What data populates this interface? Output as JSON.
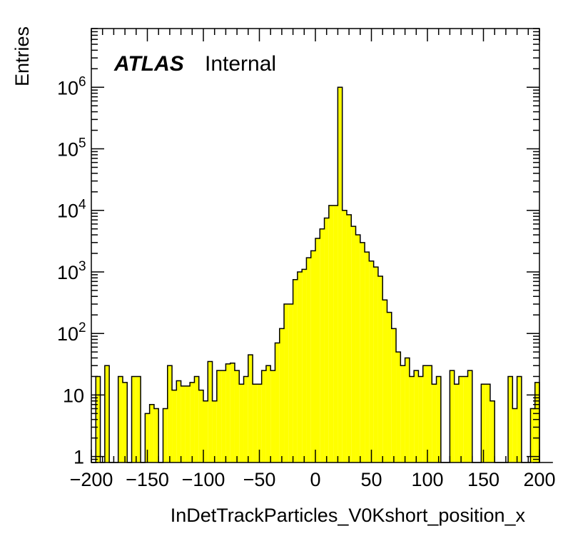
{
  "chart_data": {
    "type": "bar",
    "style": "histogram",
    "fill_color": "#ffff00",
    "line_color": "#000000",
    "xlabel": "InDetTrackParticles_V0Kshort_position_x",
    "ylabel": "Entries",
    "label_main": "ATLAS",
    "label_sub": "Internal",
    "xlim": [
      -200,
      200
    ],
    "ylim": [
      0.8,
      9000000
    ],
    "yscale": "log",
    "bin_width": 4,
    "x_ticks": [
      {
        "value": -200,
        "label": "−200"
      },
      {
        "value": -150,
        "label": "−150"
      },
      {
        "value": -100,
        "label": "−100"
      },
      {
        "value": -50,
        "label": "−50"
      },
      {
        "value": 0,
        "label": "0"
      },
      {
        "value": 50,
        "label": "50"
      },
      {
        "value": 100,
        "label": "100"
      },
      {
        "value": 150,
        "label": "150"
      },
      {
        "value": 200,
        "label": "200"
      }
    ],
    "y_ticks": [
      {
        "value": 1,
        "base": "1",
        "exp": ""
      },
      {
        "value": 10,
        "base": "10",
        "exp": ""
      },
      {
        "value": 100,
        "base": "10",
        "exp": "2"
      },
      {
        "value": 1000,
        "base": "10",
        "exp": "3"
      },
      {
        "value": 10000,
        "base": "10",
        "exp": "4"
      },
      {
        "value": 100000,
        "base": "10",
        "exp": "5"
      },
      {
        "value": 1000000,
        "base": "10",
        "exp": "6"
      }
    ],
    "bin_edges_start": -200,
    "values": [
      0,
      20,
      0,
      30,
      0,
      0,
      20,
      16,
      0,
      20,
      20,
      0,
      5,
      7,
      6,
      0,
      6,
      30,
      12,
      17,
      14,
      14,
      16,
      20,
      12,
      8,
      35,
      8,
      25,
      25,
      32,
      33,
      25,
      15,
      20,
      45,
      15,
      15,
      25,
      30,
      25,
      70,
      120,
      300,
      300,
      750,
      1000,
      1100,
      1700,
      2200,
      3500,
      5000,
      7500,
      12000,
      12000,
      1000000,
      10000,
      8500,
      5500,
      4000,
      3000,
      2100,
      1500,
      1200,
      850,
      350,
      220,
      120,
      50,
      30,
      40,
      20,
      25,
      20,
      30,
      30,
      15,
      20,
      0,
      0,
      25,
      15,
      20,
      20,
      25,
      0,
      0,
      15,
      15,
      8,
      0,
      0,
      0,
      20,
      6,
      20,
      0,
      0,
      6,
      16,
      0,
      0,
      0
    ]
  }
}
